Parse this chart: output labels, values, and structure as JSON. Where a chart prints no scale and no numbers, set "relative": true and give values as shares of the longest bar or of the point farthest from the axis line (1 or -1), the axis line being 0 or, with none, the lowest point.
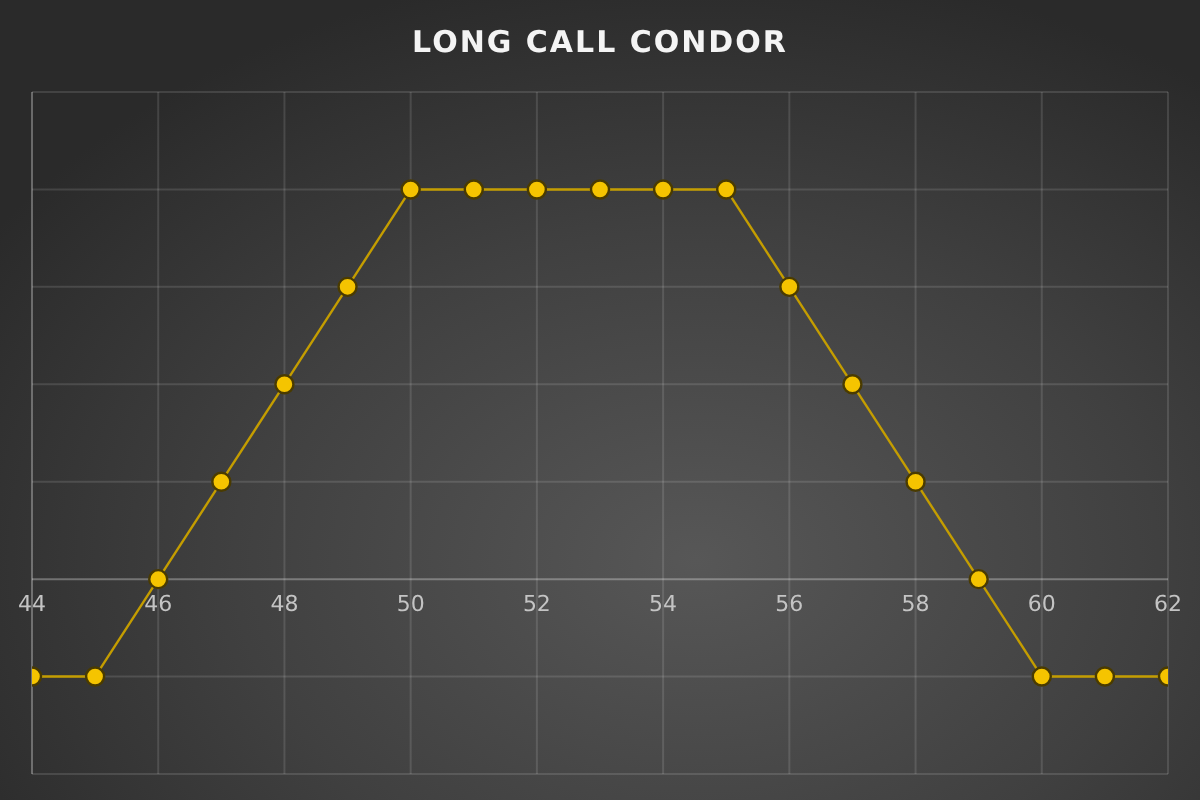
{
  "chart_data": {
    "type": "line",
    "title": "LONG CALL CONDOR",
    "x": [
      44,
      45,
      46,
      47,
      48,
      49,
      50,
      51,
      52,
      53,
      54,
      55,
      56,
      57,
      58,
      59,
      60,
      61,
      62
    ],
    "series": [
      {
        "color": "#f5c400",
        "values": [
          -0.25,
          -0.25,
          0,
          0.25,
          0.5,
          0.75,
          1,
          1,
          1,
          1,
          1,
          1,
          0.75,
          0.5,
          0.25,
          0,
          -0.25,
          -0.25,
          -0.25
        ]
      }
    ],
    "relative": true,
    "xlim": [
      44,
      62
    ],
    "xticks": [
      44,
      46,
      48,
      50,
      52,
      54,
      56,
      58,
      60,
      62
    ],
    "tick_labels": "x",
    "grid": true,
    "marker": "circle",
    "line_style": "solid"
  }
}
